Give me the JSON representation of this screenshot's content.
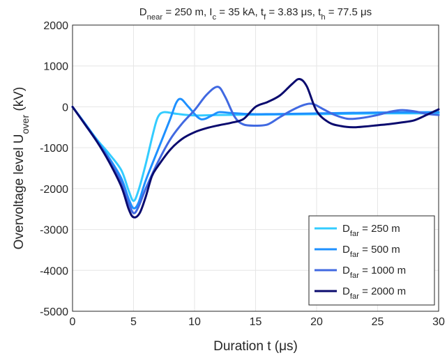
{
  "chart_data": {
    "type": "line",
    "title": {
      "parts": [
        {
          "t": "D"
        },
        {
          "t": "near",
          "sub": true
        },
        {
          "t": " = 250 m, I"
        },
        {
          "t": "c",
          "sub": true
        },
        {
          "t": " = 35 kA, t"
        },
        {
          "t": "f",
          "sub": true
        },
        {
          "t": " = 3.83 μs, t"
        },
        {
          "t": "h",
          "sub": true
        },
        {
          "t": " = 77.5 μs"
        }
      ]
    },
    "xlabel": "Duration t (μs)",
    "ylabel": {
      "main": "Overvoltage level U",
      "sub": "over",
      "unit": " (kV)"
    },
    "xlim": [
      0,
      30
    ],
    "ylim": [
      -5000,
      2000
    ],
    "x_ticks": [
      "0",
      "5",
      "10",
      "15",
      "20",
      "25",
      "30"
    ],
    "y_ticks": [
      "2000",
      "1000",
      "0",
      "-1000",
      "-2000",
      "-3000",
      "-4000",
      "-5000"
    ],
    "grid": true,
    "legend_position": "bottom-right",
    "series": [
      {
        "name": "D_far = 250 m",
        "label_parts": [
          {
            "t": "D"
          },
          {
            "t": "far",
            "sub": true
          },
          {
            "t": " = 250 m"
          }
        ],
        "color": "#33ccff",
        "points": [
          [
            0,
            0
          ],
          [
            1,
            -400
          ],
          [
            2,
            -800
          ],
          [
            3,
            -1150
          ],
          [
            4,
            -1550
          ],
          [
            4.6,
            -2050
          ],
          [
            5,
            -2300
          ],
          [
            5.4,
            -2050
          ],
          [
            6,
            -1400
          ],
          [
            6.6,
            -650
          ],
          [
            7,
            -250
          ],
          [
            7.5,
            -130
          ],
          [
            8.5,
            -170
          ],
          [
            10,
            -210
          ],
          [
            12,
            -200
          ],
          [
            15,
            -190
          ],
          [
            20,
            -180
          ],
          [
            25,
            -160
          ],
          [
            30,
            -160
          ]
        ]
      },
      {
        "name": "D_far = 500 m",
        "label_parts": [
          {
            "t": "D"
          },
          {
            "t": "far",
            "sub": true
          },
          {
            "t": " = 500 m"
          }
        ],
        "color": "#1e90ff",
        "points": [
          [
            0,
            0
          ],
          [
            1,
            -400
          ],
          [
            2,
            -820
          ],
          [
            3,
            -1250
          ],
          [
            4,
            -1750
          ],
          [
            4.6,
            -2250
          ],
          [
            5,
            -2480
          ],
          [
            5.4,
            -2350
          ],
          [
            6,
            -1800
          ],
          [
            7,
            -1050
          ],
          [
            8,
            -300
          ],
          [
            8.5,
            100
          ],
          [
            8.9,
            190
          ],
          [
            9.5,
            0
          ],
          [
            10.5,
            -300
          ],
          [
            11.5,
            -200
          ],
          [
            12,
            -130
          ],
          [
            13,
            -150
          ],
          [
            15,
            -180
          ],
          [
            20,
            -160
          ],
          [
            25,
            -140
          ],
          [
            30,
            -130
          ]
        ]
      },
      {
        "name": "D_far = 1000 m",
        "label_parts": [
          {
            "t": "D"
          },
          {
            "t": "far",
            "sub": true
          },
          {
            "t": " = 1000 m"
          }
        ],
        "color": "#4169e1",
        "points": [
          [
            0,
            0
          ],
          [
            1,
            -420
          ],
          [
            2,
            -850
          ],
          [
            3,
            -1300
          ],
          [
            4,
            -1850
          ],
          [
            4.6,
            -2350
          ],
          [
            5,
            -2600
          ],
          [
            5.4,
            -2450
          ],
          [
            6,
            -2000
          ],
          [
            7,
            -1350
          ],
          [
            8,
            -800
          ],
          [
            9,
            -400
          ],
          [
            10,
            -80
          ],
          [
            11,
            300
          ],
          [
            11.9,
            490
          ],
          [
            12.5,
            250
          ],
          [
            13.3,
            -250
          ],
          [
            14,
            -430
          ],
          [
            15,
            -460
          ],
          [
            16,
            -430
          ],
          [
            17,
            -250
          ],
          [
            18,
            -80
          ],
          [
            19,
            50
          ],
          [
            19.7,
            70
          ],
          [
            20.5,
            -50
          ],
          [
            21.5,
            -200
          ],
          [
            22.5,
            -290
          ],
          [
            23.5,
            -280
          ],
          [
            25,
            -200
          ],
          [
            26,
            -120
          ],
          [
            27,
            -80
          ],
          [
            28,
            -110
          ],
          [
            29,
            -170
          ],
          [
            30,
            -200
          ]
        ]
      },
      {
        "name": "D_far = 2000 m",
        "label_parts": [
          {
            "t": "D"
          },
          {
            "t": "far",
            "sub": true
          },
          {
            "t": " = 2000 m"
          }
        ],
        "color": "#0a0a6e",
        "points": [
          [
            0,
            0
          ],
          [
            1,
            -420
          ],
          [
            2,
            -850
          ],
          [
            3,
            -1350
          ],
          [
            4,
            -1950
          ],
          [
            4.6,
            -2500
          ],
          [
            5,
            -2700
          ],
          [
            5.5,
            -2600
          ],
          [
            6,
            -2200
          ],
          [
            6.5,
            -1700
          ],
          [
            7,
            -1450
          ],
          [
            8,
            -1050
          ],
          [
            9,
            -780
          ],
          [
            10,
            -620
          ],
          [
            11,
            -520
          ],
          [
            12,
            -450
          ],
          [
            13,
            -390
          ],
          [
            14,
            -300
          ],
          [
            15,
            0
          ],
          [
            16,
            120
          ],
          [
            17,
            280
          ],
          [
            18,
            560
          ],
          [
            18.6,
            680
          ],
          [
            19.2,
            500
          ],
          [
            20,
            -100
          ],
          [
            21,
            -380
          ],
          [
            22,
            -470
          ],
          [
            23,
            -500
          ],
          [
            24,
            -480
          ],
          [
            25,
            -450
          ],
          [
            26,
            -420
          ],
          [
            27,
            -380
          ],
          [
            28,
            -330
          ],
          [
            29,
            -200
          ],
          [
            30,
            -60
          ]
        ]
      }
    ]
  }
}
